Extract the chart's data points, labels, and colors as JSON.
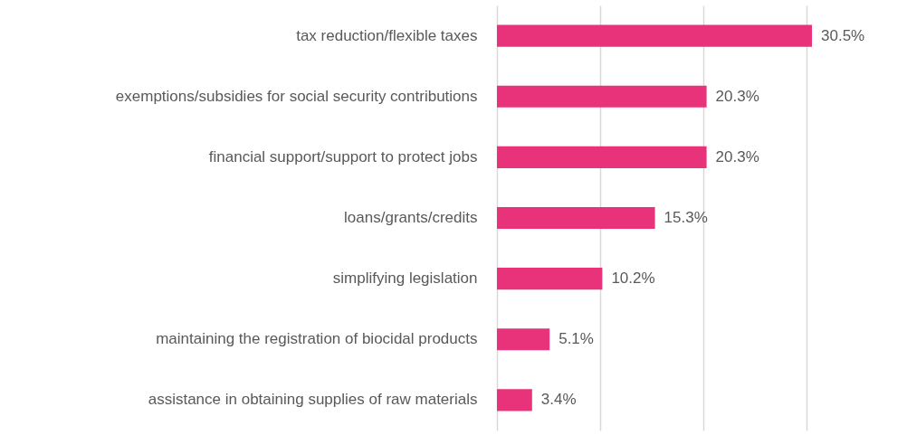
{
  "chart_data": {
    "type": "bar",
    "orientation": "horizontal",
    "categories": [
      "tax reduction/flexible taxes",
      "exemptions/subsidies for social security contributions",
      "financial support/support to protect jobs",
      "loans/grants/credits",
      "simplifying legislation",
      "maintaining the registration of biocidal products",
      "assistance in obtaining supplies of raw materials"
    ],
    "values": [
      30.5,
      20.3,
      20.3,
      15.3,
      10.2,
      5.1,
      3.4
    ],
    "value_labels": [
      "30.5%",
      "20.3%",
      "20.3%",
      "15.3%",
      "10.2%",
      "5.1%",
      "3.4%"
    ],
    "color": "#e8337a",
    "xticks": [
      {
        "value": 0,
        "label": null
      },
      {
        "value": 10,
        "label": null
      },
      {
        "value": 20,
        "label": null
      },
      {
        "value": 30,
        "label": null
      }
    ],
    "grid": "x",
    "tick_labels": "y"
  }
}
